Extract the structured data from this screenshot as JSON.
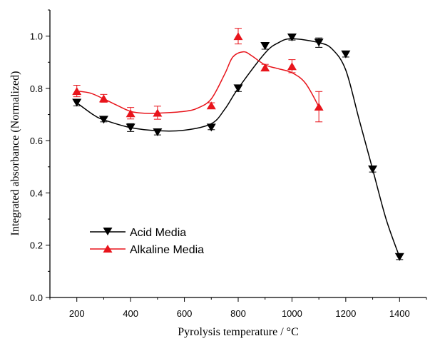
{
  "chart_data": {
    "type": "scatter",
    "xlabel": "Pyrolysis temperature / °C",
    "ylabel": "Integrated absorbance (Normalized)",
    "xlim": [
      100,
      1500
    ],
    "ylim": [
      0.0,
      1.1
    ],
    "x_ticks": [
      200,
      400,
      600,
      800,
      1000,
      1200,
      1400
    ],
    "y_ticks": [
      "0.0",
      "0.2",
      "0.4",
      "0.6",
      "0.8",
      "1.0"
    ],
    "grid": false,
    "legend_position": "lower-left",
    "series": [
      {
        "name": "Acid Media",
        "marker": "triangle-down",
        "color": "#000000",
        "x": [
          200,
          300,
          400,
          500,
          700,
          800,
          900,
          1000,
          1100,
          1200,
          1300,
          1400
        ],
        "y": [
          0.745,
          0.68,
          0.65,
          0.632,
          0.65,
          0.8,
          0.962,
          0.995,
          0.975,
          0.93,
          0.49,
          0.155
        ],
        "error": [
          0.012,
          0.008,
          0.015,
          0.01,
          0.008,
          0.012,
          0.012,
          0.01,
          0.018,
          0.01,
          0.01,
          0.01
        ],
        "fit_curve": [
          [
            200,
            0.745
          ],
          [
            260,
            0.7
          ],
          [
            300,
            0.68
          ],
          [
            400,
            0.65
          ],
          [
            500,
            0.638
          ],
          [
            600,
            0.64
          ],
          [
            700,
            0.665
          ],
          [
            750,
            0.72
          ],
          [
            800,
            0.8
          ],
          [
            900,
            0.935
          ],
          [
            950,
            0.975
          ],
          [
            1000,
            0.99
          ],
          [
            1100,
            0.975
          ],
          [
            1150,
            0.95
          ],
          [
            1200,
            0.87
          ],
          [
            1250,
            0.68
          ],
          [
            1300,
            0.49
          ],
          [
            1350,
            0.3
          ],
          [
            1400,
            0.155
          ]
        ]
      },
      {
        "name": "Alkaline Media",
        "marker": "triangle-up",
        "color": "#e8141b",
        "x": [
          200,
          300,
          400,
          500,
          700,
          800,
          900,
          1000,
          1100
        ],
        "y": [
          0.79,
          0.762,
          0.705,
          0.707,
          0.735,
          1.0,
          0.88,
          0.885,
          0.73
        ],
        "error": [
          0.022,
          0.015,
          0.022,
          0.025,
          0.01,
          0.03,
          0.012,
          0.025,
          0.058
        ],
        "fit_curve": [
          [
            200,
            0.79
          ],
          [
            250,
            0.782
          ],
          [
            300,
            0.76
          ],
          [
            350,
            0.735
          ],
          [
            400,
            0.712
          ],
          [
            450,
            0.705
          ],
          [
            500,
            0.705
          ],
          [
            600,
            0.712
          ],
          [
            650,
            0.725
          ],
          [
            700,
            0.76
          ],
          [
            750,
            0.855
          ],
          [
            780,
            0.92
          ],
          [
            820,
            0.94
          ],
          [
            850,
            0.925
          ],
          [
            900,
            0.89
          ],
          [
            950,
            0.875
          ],
          [
            1000,
            0.86
          ],
          [
            1050,
            0.82
          ],
          [
            1100,
            0.73
          ]
        ]
      }
    ]
  }
}
